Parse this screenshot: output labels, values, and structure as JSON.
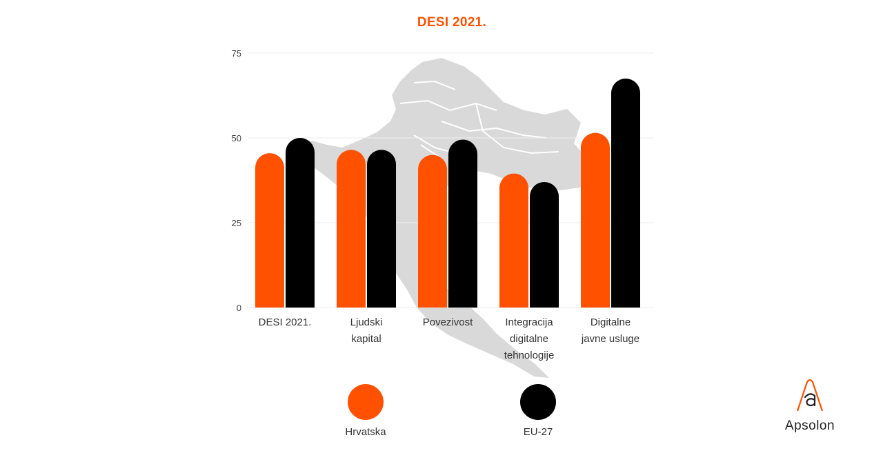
{
  "colors": {
    "hrvatska": "#ff5100",
    "eu27": "#000000",
    "title": "#ff5100",
    "map": "#d9d9d9",
    "grid": "#eeeeee"
  },
  "chart_data": {
    "type": "bar",
    "title": "DESI 2021.",
    "categories": [
      [
        "DESI 2021."
      ],
      [
        "Ljudski",
        "kapital"
      ],
      [
        "Povezivost"
      ],
      [
        "Integracija",
        "digitalne",
        "tehnologije"
      ],
      [
        "Digitalne",
        "javne usluge"
      ]
    ],
    "series": [
      {
        "name": "Hrvatska",
        "color": "#ff5100",
        "values": [
          45.5,
          46.5,
          45,
          39.5,
          51.5
        ]
      },
      {
        "name": "EU-27",
        "color": "#000000",
        "values": [
          50,
          46.5,
          49.5,
          37,
          67.5
        ]
      }
    ],
    "yticks": [
      0,
      25,
      50,
      75
    ],
    "ylim": [
      0,
      75
    ],
    "grid": true,
    "legend_position": "bottom",
    "bar_style": "rounded-top"
  },
  "legend": {
    "items": [
      {
        "label": "Hrvatska",
        "color": "#ff5100"
      },
      {
        "label": "EU-27",
        "color": "#000000"
      }
    ]
  },
  "logo": {
    "text": "Apsolon",
    "icon": "apsolon-logo-icon"
  }
}
